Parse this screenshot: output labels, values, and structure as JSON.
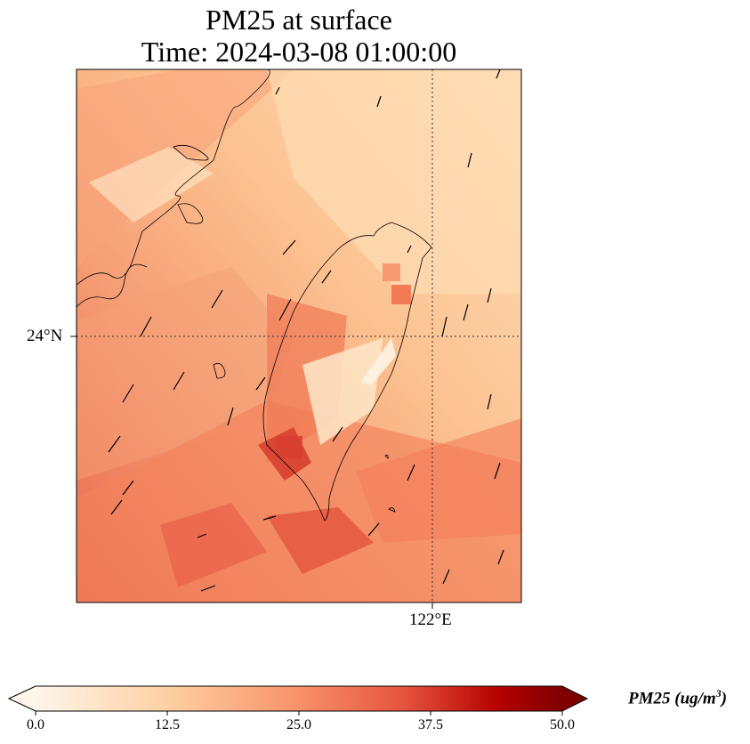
{
  "title": {
    "line1": "PM25 at surface",
    "line2": "Time: 2024-03-08 01:00:00"
  },
  "map": {
    "gridlines": {
      "lat_label": "24°N",
      "lon_label": "122°E"
    },
    "background_color": "#fdd5a6",
    "coastline_color": "#000000"
  },
  "colorbar": {
    "ticks": [
      "0.0",
      "12.5",
      "25.0",
      "37.5",
      "50.0"
    ],
    "label_main": "PM25 (ug/m",
    "label_sup": "3",
    "label_end": ")",
    "colors": [
      "#fff5eb",
      "#fdd0a2",
      "#f8916a",
      "#e5533e",
      "#b50000",
      "#7f0000"
    ]
  }
}
